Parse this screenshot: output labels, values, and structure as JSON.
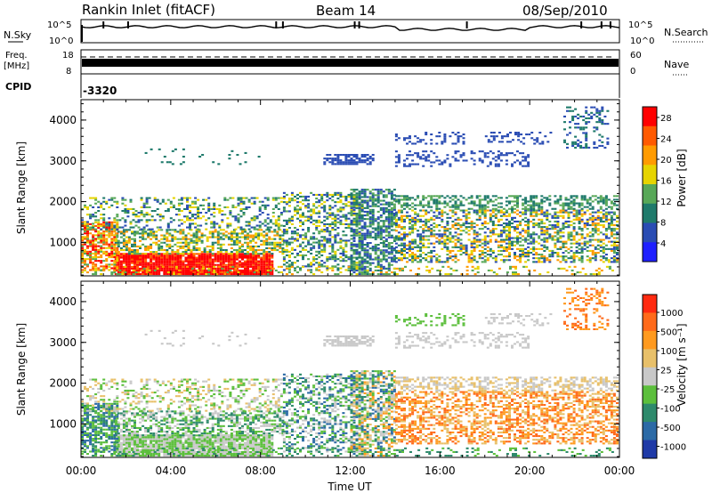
{
  "header": {
    "station": "Rankin Inlet (fitACF)",
    "beam": "Beam 14",
    "date": "08/Sep/2010"
  },
  "strip_panels": {
    "nsky_label": "N.Sky",
    "nsky_ticks": [
      "10^5",
      "10^0"
    ],
    "nsearch_label": "N.Search",
    "nsearch_ticks": [
      "10^5",
      "10^0"
    ],
    "freq_label": "Freq.",
    "freq_unit": "[MHz]",
    "freq_ticks": [
      "18",
      "8"
    ],
    "nave_label": "Nave",
    "nave_ticks": [
      "60",
      "0"
    ],
    "cpid_label": "CPID",
    "cpid_value": "-3320"
  },
  "colors": {
    "power_scale": [
      "#1f20ff",
      "#2a4cb3",
      "#1f7a6b",
      "#58a858",
      "#e6d400",
      "#ff9b00",
      "#ff5a00",
      "#ff0000"
    ],
    "velocity_scale": [
      "#1f3aa7",
      "#2c6aa6",
      "#2e8a6c",
      "#5cbf3c",
      "#c8c8c8",
      "#e8c06a",
      "#ff9a1f",
      "#ff6a1a",
      "#ff2a10"
    ]
  },
  "chart_data": [
    {
      "type": "heatmap",
      "name": "power",
      "ylabel": "Slant Range [km]",
      "xlabel": "Time UT",
      "x_ticks": [
        "00:00",
        "04:00",
        "08:00",
        "12:00",
        "16:00",
        "20:00",
        "00:00"
      ],
      "y_ticks": [
        "1000",
        "2000",
        "3000",
        "4000"
      ],
      "ylim": [
        180,
        4500
      ],
      "xlim_hours": [
        0,
        24
      ],
      "colorbar": {
        "label": "Power [dB]",
        "ticks": [
          "28",
          "24",
          "20",
          "16",
          "12",
          "8",
          "4"
        ],
        "range": [
          0,
          30
        ]
      }
    },
    {
      "type": "heatmap",
      "name": "velocity",
      "ylabel": "Slant Range [km]",
      "xlabel": "Time UT",
      "x_ticks": [
        "00:00",
        "04:00",
        "08:00",
        "12:00",
        "16:00",
        "20:00",
        "00:00"
      ],
      "y_ticks": [
        "1000",
        "2000",
        "3000",
        "4000"
      ],
      "ylim": [
        180,
        4500
      ],
      "xlim_hours": [
        0,
        24
      ],
      "colorbar": {
        "label": "Velocity [m s⁻¹]",
        "ticks": [
          "1000",
          "500",
          "100",
          "25",
          "-25",
          "-100",
          "-500",
          "-1000"
        ]
      }
    }
  ]
}
